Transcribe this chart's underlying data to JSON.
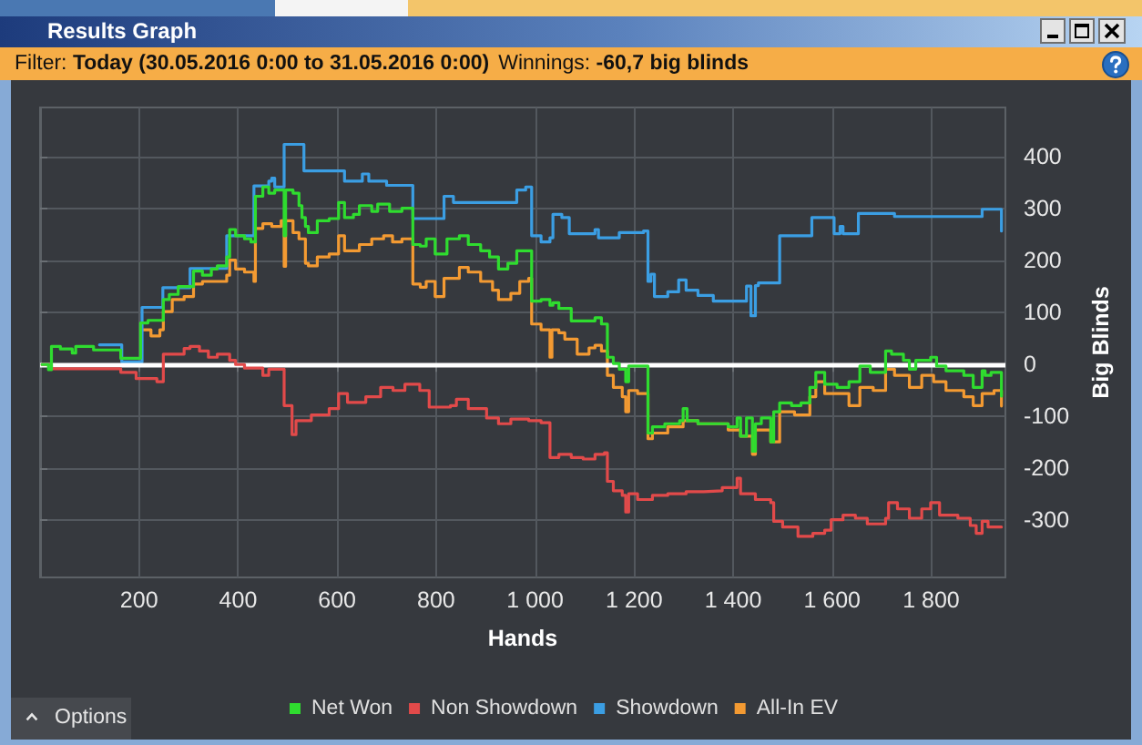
{
  "chart_data": {
    "type": "step",
    "title": "Results Graph",
    "subtitle": "Filter: Today (30.05.2016 0:00 to 31.05.2016 0:00)",
    "annotations": [
      "Winnings: -60,7 big blinds",
      "Options"
    ],
    "xlabel": "Hands",
    "ylabel": "Big Blinds",
    "xlim": [
      0,
      1950
    ],
    "ylim": [
      -410,
      495
    ],
    "xticks": [
      200,
      400,
      600,
      800,
      {
        "value": 1000,
        "label": "1 000"
      },
      {
        "value": 1200,
        "label": "1 200"
      },
      {
        "value": 1400,
        "label": "1 400"
      },
      {
        "value": 1600,
        "label": "1 600"
      },
      {
        "value": 1800,
        "label": "1 800"
      }
    ],
    "yticks": [
      -300,
      -200,
      -100,
      0,
      100,
      200,
      300,
      400
    ],
    "grid": true,
    "legend": "bottom",
    "ref_lines": [
      {
        "axis": "y",
        "value": 0,
        "color": "#ffffff"
      }
    ],
    "series": [
      {
        "name": "Net Won",
        "color": "#2fdc2f",
        "x": [
          4,
          17,
          23,
          41,
          65,
          72,
          108,
          163,
          203,
          218,
          249,
          261,
          279,
          310,
          328,
          346,
          358,
          377,
          383,
          395,
          413,
          426,
          435,
          450,
          462,
          474,
          493,
          496,
          511,
          523,
          529,
          536,
          542,
          560,
          584,
          603,
          615,
          633,
          645,
          670,
          682,
          706,
          731,
          753,
          768,
          780,
          798,
          822,
          847,
          865,
          890,
          908,
          926,
          945,
          963,
          993,
          1012,
          1030,
          1036,
          1048,
          1073,
          1121,
          1134,
          1146,
          1158,
          1170,
          1183,
          1189,
          1228,
          1237,
          1262,
          1292,
          1299,
          1307,
          1329,
          1390,
          1408,
          1415,
          1427,
          1439,
          1445,
          1457,
          1476,
          1482,
          1494,
          1518,
          1537,
          1555,
          1567,
          1585,
          1610,
          1634,
          1656,
          1677,
          1708,
          1720,
          1744,
          1756,
          1769,
          1799,
          1811,
          1830,
          1866,
          1885,
          1903,
          1909,
          1921,
          1942
        ],
        "values": [
          0,
          -10,
          35,
          30,
          22,
          35,
          28,
          12,
          80,
          85,
          125,
          135,
          150,
          180,
          172,
          184,
          190,
          207,
          260,
          248,
          242,
          236,
          324,
          342,
          330,
          336,
          248,
          336,
          330,
          306,
          283,
          266,
          254,
          277,
          281,
          312,
          283,
          289,
          306,
          295,
          309,
          295,
          301,
          231,
          228,
          242,
          213,
          242,
          248,
          231,
          219,
          207,
          184,
          195,
          219,
          122,
          125,
          114,
          119,
          108,
          84,
          90,
          78,
          14,
          2,
          -9,
          -33,
          -3,
          -132,
          -120,
          -114,
          -108,
          -85,
          -108,
          -114,
          -120,
          -103,
          -138,
          -103,
          -167,
          -114,
          -103,
          -149,
          -91,
          -74,
          -79,
          -74,
          -44,
          -15,
          -38,
          -44,
          -33,
          -3,
          -15,
          26,
          20,
          8,
          -9,
          8,
          14,
          -3,
          -12,
          -21,
          -44,
          -12,
          -21,
          -15,
          -61
        ]
      },
      {
        "name": "Non Showdown",
        "color": "#e24a4a",
        "x": [
          4,
          23,
          163,
          194,
          236,
          249,
          291,
          303,
          322,
          340,
          358,
          383,
          395,
          413,
          450,
          462,
          493,
          509,
          517,
          548,
          584,
          603,
          621,
          658,
          688,
          713,
          737,
          767,
          786,
          829,
          841,
          865,
          902,
          926,
          951,
          987,
          1012,
          1030,
          1048,
          1073,
          1097,
          1121,
          1140,
          1146,
          1158,
          1176,
          1183,
          1189,
          1207,
          1237,
          1268,
          1305,
          1341,
          1378,
          1408,
          1415,
          1445,
          1476,
          1482,
          1500,
          1531,
          1561,
          1585,
          1598,
          1622,
          1647,
          1671,
          1708,
          1714,
          1732,
          1756,
          1781,
          1799,
          1817,
          1854,
          1879,
          1891,
          1903,
          1915,
          1942
        ],
        "values": [
          0,
          -8,
          -15,
          -27,
          -33,
          20,
          31,
          35,
          26,
          14,
          20,
          8,
          0,
          -7,
          -21,
          -9,
          -79,
          -135,
          -108,
          -97,
          -85,
          -56,
          -73,
          -62,
          -44,
          -50,
          -38,
          -50,
          -82,
          -79,
          -67,
          -85,
          -103,
          -114,
          -105,
          -108,
          -112,
          -179,
          -173,
          -179,
          -182,
          -173,
          -170,
          -225,
          -243,
          -252,
          -284,
          -249,
          -260,
          -252,
          -249,
          -245,
          -243,
          -237,
          -219,
          -249,
          -260,
          -266,
          -302,
          -313,
          -331,
          -325,
          -319,
          -299,
          -290,
          -296,
          -307,
          -296,
          -266,
          -278,
          -296,
          -278,
          -266,
          -290,
          -296,
          -310,
          -325,
          -302,
          -313,
          -313
        ]
      },
      {
        "name": "Showdown",
        "color": "#3b9ee3",
        "x": [
          120,
          165,
          206,
          248,
          303,
          377,
          432,
          462,
          468,
          474,
          493,
          533,
          615,
          651,
          664,
          700,
          753,
          816,
          835,
          963,
          981,
          993,
          1012,
          1030,
          1036,
          1054,
          1069,
          1121,
          1128,
          1170,
          1219,
          1228,
          1234,
          1241,
          1268,
          1290,
          1305,
          1329,
          1360,
          1427,
          1436,
          1445,
          1451,
          1494,
          1559,
          1604,
          1616,
          1622,
          1653,
          1726,
          1903,
          1942
        ],
        "values": [
          38,
          5,
          110,
          148,
          185,
          248,
          344,
          353,
          359,
          342,
          424,
          373,
          353,
          367,
          353,
          345,
          281,
          324,
          312,
          336,
          342,
          248,
          236,
          244,
          289,
          283,
          252,
          260,
          244,
          254,
          257,
          160,
          174,
          131,
          140,
          163,
          143,
          133,
          122,
          151,
          94,
          152,
          157,
          248,
          283,
          252,
          266,
          252,
          291,
          285,
          299,
          257
        ]
      },
      {
        "name": "All-In EV",
        "color": "#f39a32",
        "x": [
          206,
          224,
          242,
          249,
          267,
          291,
          310,
          328,
          377,
          383,
          395,
          413,
          432,
          435,
          450,
          468,
          487,
          493,
          496,
          511,
          523,
          536,
          542,
          560,
          584,
          603,
          615,
          645,
          670,
          694,
          712,
          731,
          753,
          768,
          780,
          798,
          816,
          847,
          865,
          890,
          914,
          926,
          951,
          969,
          987,
          993,
          1012,
          1030,
          1034,
          1048,
          1060,
          1085,
          1109,
          1121,
          1134,
          1146,
          1158,
          1176,
          1183,
          1189,
          1207,
          1228,
          1237,
          1268,
          1299,
          1329,
          1390,
          1415,
          1439,
          1445,
          1476,
          1494,
          1524,
          1555,
          1567,
          1585,
          1634,
          1656,
          1683,
          1708,
          1726,
          1756,
          1781,
          1805,
          1830,
          1866,
          1885,
          1903,
          1927,
          1942
        ],
        "values": [
          67,
          55,
          67,
          102,
          125,
          131,
          155,
          160,
          172,
          201,
          184,
          178,
          160,
          262,
          271,
          266,
          277,
          189,
          277,
          254,
          242,
          195,
          190,
          207,
          213,
          248,
          219,
          231,
          242,
          248,
          236,
          242,
          155,
          149,
          160,
          131,
          166,
          187,
          178,
          160,
          143,
          125,
          137,
          160,
          166,
          78,
          67,
          14,
          67,
          61,
          49,
          20,
          32,
          37,
          26,
          -21,
          -44,
          -62,
          -91,
          -50,
          -56,
          -143,
          -132,
          -120,
          -108,
          -114,
          -126,
          -138,
          -173,
          -126,
          -149,
          -91,
          -97,
          -62,
          -33,
          -56,
          -79,
          -44,
          -50,
          -9,
          -21,
          -44,
          -21,
          -33,
          -50,
          -62,
          -79,
          -56,
          -50,
          -80
        ]
      }
    ]
  }
}
